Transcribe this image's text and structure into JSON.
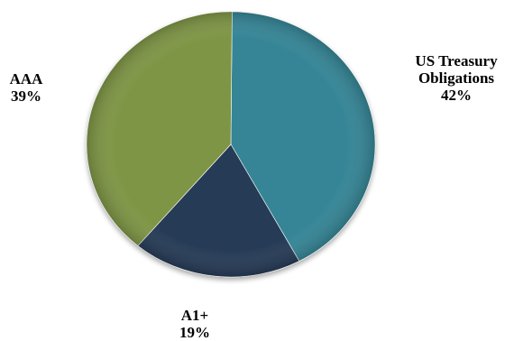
{
  "chart_data": {
    "type": "pie",
    "slices": [
      {
        "label_lines": [
          "US Treasury",
          "Obligations"
        ],
        "value": 42,
        "value_text": "42%",
        "color": "#348596"
      },
      {
        "label_lines": [
          "A1+"
        ],
        "value": 19,
        "value_text": "19%",
        "color": "#273a57"
      },
      {
        "label_lines": [
          "AAA"
        ],
        "value": 39,
        "value_text": "39%",
        "color": "#7e9545"
      }
    ]
  }
}
